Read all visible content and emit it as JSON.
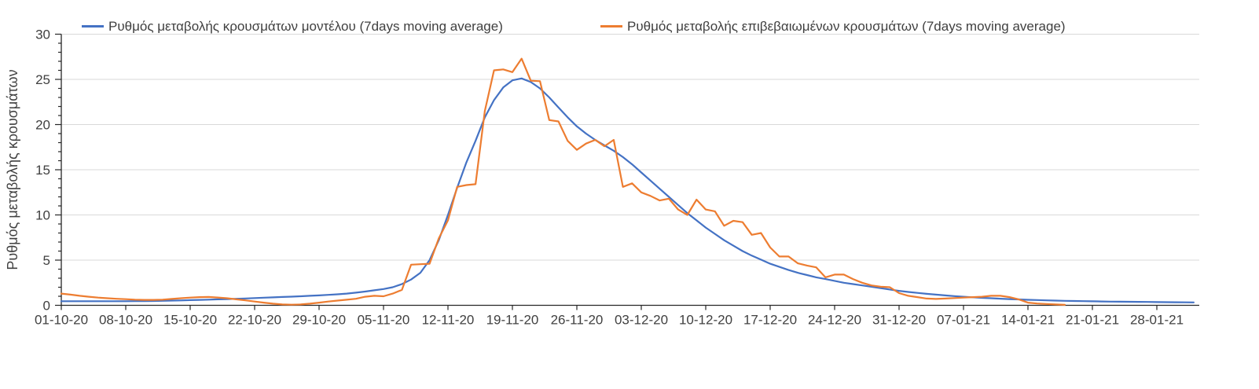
{
  "axis_style": {
    "text_color": "#404040",
    "axis_color": "#262626",
    "gridline_color": "#d9d9d9",
    "background": "#ffffff"
  },
  "chart_data": {
    "type": "line",
    "title": "",
    "xlabel": "",
    "ylabel": "Ρυθμός μεταβολής κρουσμάτων",
    "ylim": [
      0,
      30
    ],
    "y_major_ticks": [
      0,
      5,
      10,
      15,
      20,
      25,
      30
    ],
    "y_minor_tick_step": 1,
    "grid": "horizontal-major-gridlines",
    "legend_position": "top",
    "x_unit": "days",
    "x_start": "01-10-20",
    "x_tick_interval_days": 7,
    "x_tick_labels": [
      "01-10-20",
      "08-10-20",
      "15-10-20",
      "22-10-20",
      "29-10-20",
      "05-11-20",
      "12-11-20",
      "19-11-20",
      "26-11-20",
      "03-12-20",
      "10-12-20",
      "17-12-20",
      "24-12-20",
      "31-12-20",
      "07-01-21",
      "14-01-21",
      "21-01-21",
      "28-01-21"
    ],
    "series": [
      {
        "name": "Ρυθμός μεταβολής κρουσμάτων μοντέλου (7days moving average)",
        "color": "#4472C4",
        "start_offset_days": 0,
        "start_date": "01-10-20",
        "end_date": "01-02-21",
        "values": [
          0.45,
          0.45,
          0.45,
          0.45,
          0.45,
          0.45,
          0.45,
          0.45,
          0.46,
          0.47,
          0.48,
          0.5,
          0.52,
          0.54,
          0.57,
          0.6,
          0.63,
          0.66,
          0.69,
          0.72,
          0.76,
          0.8,
          0.84,
          0.88,
          0.92,
          0.96,
          1.0,
          1.05,
          1.1,
          1.16,
          1.22,
          1.3,
          1.4,
          1.52,
          1.66,
          1.8,
          2.0,
          2.35,
          2.85,
          3.6,
          5.0,
          7.2,
          10.0,
          13.0,
          15.8,
          18.2,
          20.8,
          22.7,
          24.1,
          24.9,
          25.1,
          24.7,
          24.0,
          23.0,
          21.9,
          20.8,
          19.8,
          19.0,
          18.3,
          17.7,
          17.1,
          16.4,
          15.6,
          14.7,
          13.8,
          12.9,
          12.0,
          11.1,
          10.2,
          9.4,
          8.6,
          7.9,
          7.2,
          6.6,
          6.0,
          5.5,
          5.05,
          4.6,
          4.25,
          3.9,
          3.6,
          3.35,
          3.1,
          2.9,
          2.7,
          2.5,
          2.35,
          2.2,
          2.05,
          1.9,
          1.75,
          1.6,
          1.48,
          1.37,
          1.27,
          1.18,
          1.1,
          1.02,
          0.95,
          0.89,
          0.83,
          0.78,
          0.73,
          0.69,
          0.65,
          0.61,
          0.58,
          0.55,
          0.52,
          0.5,
          0.48,
          0.46,
          0.44,
          0.43,
          0.41,
          0.4,
          0.39,
          0.38,
          0.37,
          0.36,
          0.35,
          0.34,
          0.33,
          0.32
        ]
      },
      {
        "name": "Ρυθμός μεταβολής επιβεβαιωμένων κρουσμάτων (7days moving average)",
        "color": "#ED7D31",
        "start_offset_days": 0,
        "start_date": "01-10-20",
        "end_date": "18-01-21",
        "values": [
          1.3,
          1.18,
          1.05,
          0.95,
          0.85,
          0.78,
          0.72,
          0.68,
          0.63,
          0.6,
          0.6,
          0.63,
          0.7,
          0.78,
          0.85,
          0.9,
          0.92,
          0.86,
          0.78,
          0.66,
          0.55,
          0.42,
          0.3,
          0.18,
          0.1,
          0.07,
          0.1,
          0.18,
          0.3,
          0.42,
          0.52,
          0.62,
          0.72,
          0.95,
          1.05,
          1.0,
          1.3,
          1.7,
          4.5,
          4.55,
          4.6,
          7.4,
          9.4,
          13.1,
          13.3,
          13.4,
          21.5,
          26.0,
          26.1,
          25.8,
          27.3,
          24.85,
          24.8,
          20.5,
          20.35,
          18.2,
          17.2,
          17.9,
          18.3,
          17.6,
          18.3,
          13.1,
          13.5,
          12.5,
          12.1,
          11.6,
          11.8,
          10.6,
          10.0,
          11.7,
          10.6,
          10.4,
          8.8,
          9.35,
          9.2,
          7.8,
          8.0,
          6.4,
          5.4,
          5.4,
          4.65,
          4.4,
          4.2,
          3.1,
          3.4,
          3.4,
          2.9,
          2.5,
          2.2,
          2.05,
          2.0,
          1.35,
          1.05,
          0.9,
          0.75,
          0.7,
          0.75,
          0.8,
          0.85,
          0.9,
          0.95,
          1.05,
          1.05,
          0.9,
          0.65,
          0.3,
          0.2,
          0.15,
          0.1,
          0.05
        ]
      }
    ]
  }
}
